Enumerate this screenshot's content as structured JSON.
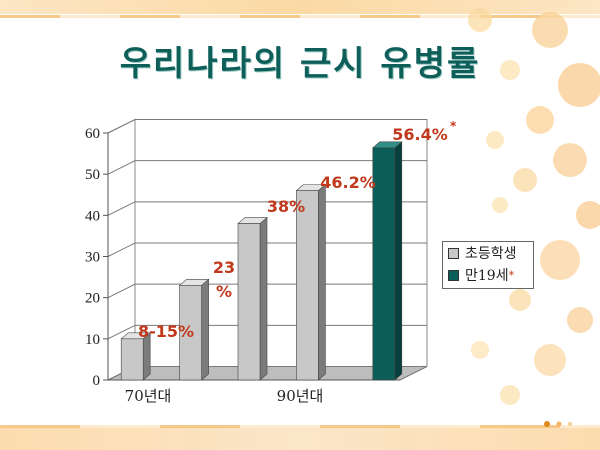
{
  "title": "우리나라의 근시 유병률",
  "colors": {
    "series1": "#c8c8c8",
    "series2": "#0b5e58",
    "label": "#c0391c",
    "title": "#0e5f5a"
  },
  "chart_data": {
    "type": "bar",
    "title": "우리나라의 근시 유병률",
    "xlabel": "",
    "ylabel": "",
    "ylim": [
      0,
      60
    ],
    "yticks": [
      "0",
      "10",
      "20",
      "30",
      "40",
      "50",
      "60"
    ],
    "category_labels": [
      "70년대",
      "90년대"
    ],
    "series": [
      {
        "name": "초등학생",
        "values": [
          10,
          23,
          38,
          46
        ]
      },
      {
        "name": "만19세",
        "values": [
          56.4
        ]
      }
    ],
    "data_labels": [
      "8-15%",
      "23 %",
      "38%",
      "46.2%",
      "56.4%"
    ],
    "footnote_mark": "*",
    "grid": true,
    "legend": "right"
  }
}
